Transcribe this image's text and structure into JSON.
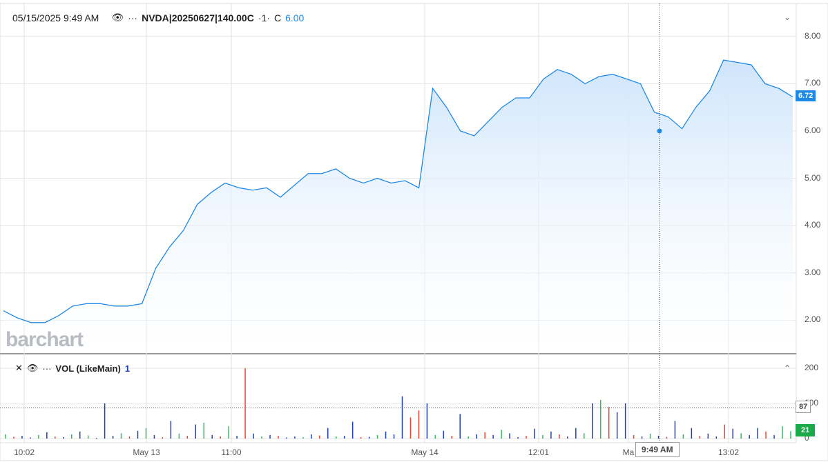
{
  "header": {
    "datetime": "05/15/2025 9:49 AM",
    "symbol": "NVDA|20250627|140.00C",
    "interval": "·1·",
    "close_label": "C",
    "close_value": "6.00",
    "eye_icon": "eye-icon",
    "more_icon": "ellipsis-icon"
  },
  "volume_header": {
    "label": "VOL (LikeMain)",
    "value": "1",
    "close_icon": "close-icon"
  },
  "watermark": "barchart",
  "crosshair": {
    "time_label": "9:49 AM"
  },
  "colors": {
    "line": "#1e88e5",
    "fill": "#cfe5fb",
    "up": "#2ebd59",
    "down": "#f0432f",
    "neutral": "#1e3fbf",
    "last_price_bg": "#1e88e5",
    "volume_tag_bg": "#1aaa4a"
  },
  "chart_data": [
    {
      "type": "area",
      "ylim": [
        1.6,
        8.4
      ],
      "yticks": [
        "8.00",
        "7.00",
        "6.00",
        "5.00",
        "4.00",
        "3.00",
        "2.00"
      ],
      "xticks": [
        "10:02",
        "May 13",
        "11:00",
        "May 14",
        "12:01",
        "Ma",
        "13:02"
      ],
      "grid": true,
      "last_price": "6.72",
      "crosshair_value": 6.0,
      "values": [
        2.2,
        2.05,
        1.95,
        1.95,
        2.1,
        2.3,
        2.35,
        2.35,
        2.3,
        2.3,
        2.35,
        3.1,
        3.55,
        3.9,
        4.45,
        4.7,
        4.9,
        4.8,
        4.75,
        4.8,
        4.6,
        4.85,
        5.1,
        5.1,
        5.2,
        5.0,
        4.9,
        5.0,
        4.9,
        4.95,
        4.8,
        6.9,
        6.5,
        6.0,
        5.9,
        6.2,
        6.5,
        6.7,
        6.7,
        7.1,
        7.3,
        7.2,
        7.0,
        7.15,
        7.2,
        7.1,
        7.0,
        6.4,
        6.3,
        6.05,
        6.5,
        6.85,
        7.5,
        7.45,
        7.4,
        7.0,
        6.9,
        6.72
      ]
    },
    {
      "type": "bar",
      "title": "VOL (LikeMain)",
      "ylim": [
        0,
        200
      ],
      "yticks": [
        "200",
        "100",
        "0"
      ],
      "reference_value": "87",
      "last_value": "21",
      "values": [
        12,
        5,
        8,
        3,
        10,
        18,
        6,
        4,
        12,
        20,
        9,
        2,
        100,
        8,
        15,
        6,
        22,
        30,
        10,
        4,
        50,
        14,
        8,
        40,
        45,
        10,
        6,
        35,
        8,
        200,
        14,
        6,
        10,
        8,
        3,
        6,
        4,
        12,
        9,
        30,
        6,
        8,
        48,
        4,
        5,
        10,
        20,
        12,
        120,
        60,
        80,
        100,
        10,
        22,
        8,
        70,
        6,
        12,
        18,
        10,
        25,
        15,
        4,
        8,
        28,
        10,
        20,
        12,
        6,
        30,
        15,
        100,
        110,
        90,
        75,
        100,
        10,
        6,
        14,
        8,
        5,
        50,
        12,
        30,
        8,
        14,
        6,
        40,
        28,
        15,
        10,
        30,
        20,
        10,
        35,
        21
      ],
      "directions": [
        "u",
        "d",
        "n",
        "n",
        "u",
        "n",
        "d",
        "n",
        "u",
        "n",
        "u",
        "n",
        "n",
        "n",
        "u",
        "d",
        "n",
        "u",
        "n",
        "d",
        "n",
        "u",
        "d",
        "n",
        "u",
        "n",
        "d",
        "u",
        "n",
        "d",
        "n",
        "u",
        "n",
        "d",
        "n",
        "n",
        "u",
        "n",
        "d",
        "n",
        "u",
        "n",
        "n",
        "d",
        "n",
        "u",
        "n",
        "n",
        "n",
        "d",
        "d",
        "n",
        "u",
        "n",
        "d",
        "n",
        "u",
        "n",
        "d",
        "n",
        "u",
        "n",
        "n",
        "d",
        "n",
        "u",
        "n",
        "d",
        "n",
        "n",
        "u",
        "n",
        "u",
        "d",
        "n",
        "n",
        "d",
        "n",
        "u",
        "n",
        "d",
        "n",
        "u",
        "n",
        "d",
        "n",
        "n",
        "d",
        "n",
        "u",
        "n",
        "n",
        "d",
        "n",
        "u",
        "u"
      ]
    }
  ]
}
